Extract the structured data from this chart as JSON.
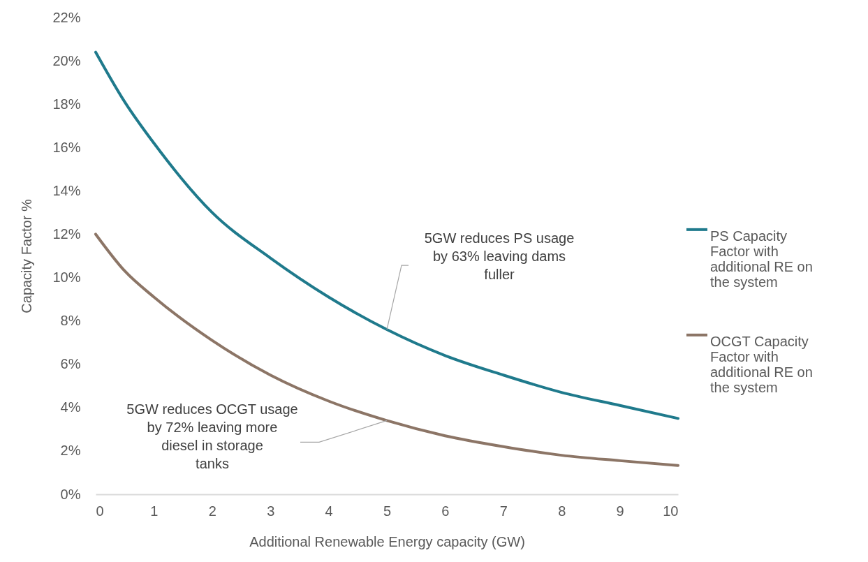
{
  "chart_data": {
    "type": "line",
    "xlabel": "Additional Renewable Energy capacity (GW)",
    "ylabel": "Capacity Factor %",
    "x": [
      0,
      0.5,
      1,
      2,
      3,
      4,
      5,
      6,
      7,
      8,
      9,
      10
    ],
    "series": [
      {
        "name": "PS Capacity Factor with additional RE on the system",
        "color": "#1f7a8c",
        "values": [
          20.4,
          18.1,
          16.2,
          13.0,
          10.9,
          9.1,
          7.6,
          6.4,
          5.5,
          4.7,
          4.1,
          3.5
        ]
      },
      {
        "name": "OCGT Capacity Factor with additional RE on the system",
        "color": "#8c7566",
        "values": [
          12.0,
          10.3,
          9.1,
          7.1,
          5.5,
          4.3,
          3.4,
          2.7,
          2.2,
          1.8,
          1.55,
          1.33
        ]
      }
    ],
    "xlim": [
      0,
      10
    ],
    "xticks": [
      0,
      1,
      2,
      3,
      4,
      5,
      6,
      7,
      8,
      9,
      10
    ],
    "ylim": [
      0,
      22
    ],
    "yticks": [
      {
        "value": 0,
        "label": "0%"
      },
      {
        "value": 2,
        "label": "2%"
      },
      {
        "value": 4,
        "label": "4%"
      },
      {
        "value": 6,
        "label": "6%"
      },
      {
        "value": 8,
        "label": "8%"
      },
      {
        "value": 10,
        "label": "10%"
      },
      {
        "value": 12,
        "label": "12%"
      },
      {
        "value": 14,
        "label": "14%"
      },
      {
        "value": 16,
        "label": "16%"
      },
      {
        "value": 18,
        "label": "18%"
      },
      {
        "value": 20,
        "label": "20%"
      },
      {
        "value": 22,
        "label": "22%"
      }
    ],
    "legend": "right",
    "annotations": [
      {
        "text": "5GW reduces PS usage by 63% leaving dams fuller",
        "x": 5,
        "y": 7.6
      },
      {
        "text": "5GW reduces OCGT usage by 72% leaving more diesel in storage tanks",
        "x": 5,
        "y": 3.4
      }
    ]
  }
}
